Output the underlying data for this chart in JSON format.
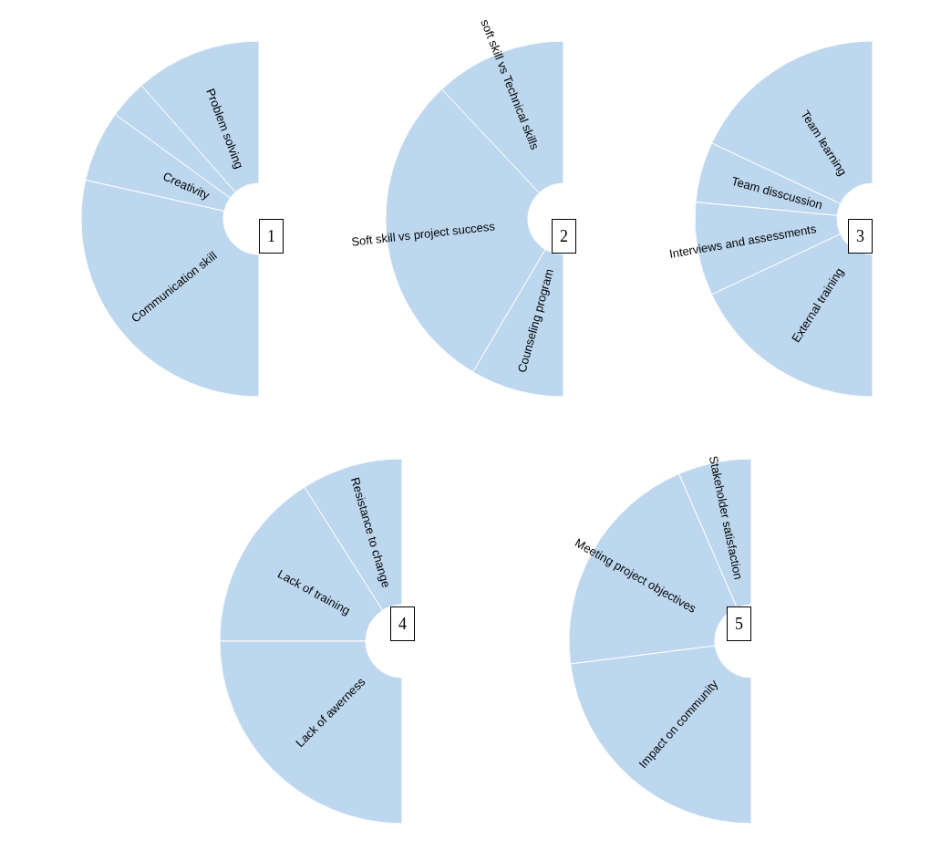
{
  "chart_data": [
    {
      "type": "donut",
      "title": "1",
      "categories": [
        "Problem solving",
        null,
        "Creativity",
        "Communication skill"
      ],
      "values": [
        23,
        7,
        13,
        57
      ],
      "colors": [
        "#bdd7ee",
        "#bdd7ee",
        "#bdd7ee",
        "#bdd7ee"
      ]
    },
    {
      "type": "donut",
      "title": "2",
      "categories": [
        "soft skill vs Technical skills",
        "Soft skill vs project success",
        "Counseling program"
      ],
      "values": [
        24,
        59,
        17
      ],
      "colors": [
        "#bdd7ee",
        "#bdd7ee",
        "#bdd7ee"
      ]
    },
    {
      "type": "donut",
      "title": "3",
      "categories": [
        "Team learning",
        "Team disscussion",
        "Interviews and assessments",
        "External training"
      ],
      "values": [
        36,
        11,
        17,
        36
      ],
      "colors": [
        "#bdd7ee",
        "#bdd7ee",
        "#bdd7ee",
        "#bdd7ee"
      ]
    },
    {
      "type": "donut",
      "title": "4",
      "categories": [
        "Resistance to change",
        "Lack of training",
        "Lack of awerness"
      ],
      "values": [
        18,
        32,
        50
      ],
      "colors": [
        "#bdd7ee",
        "#bdd7ee",
        "#bdd7ee"
      ]
    },
    {
      "type": "donut",
      "title": "5",
      "categories": [
        "Stakeholder satisfaction",
        "Meeting project objectives",
        "Impact on community"
      ],
      "values": [
        13,
        41,
        46
      ],
      "colors": [
        "#bdd7ee",
        "#bdd7ee",
        "#bdd7ee"
      ]
    }
  ]
}
